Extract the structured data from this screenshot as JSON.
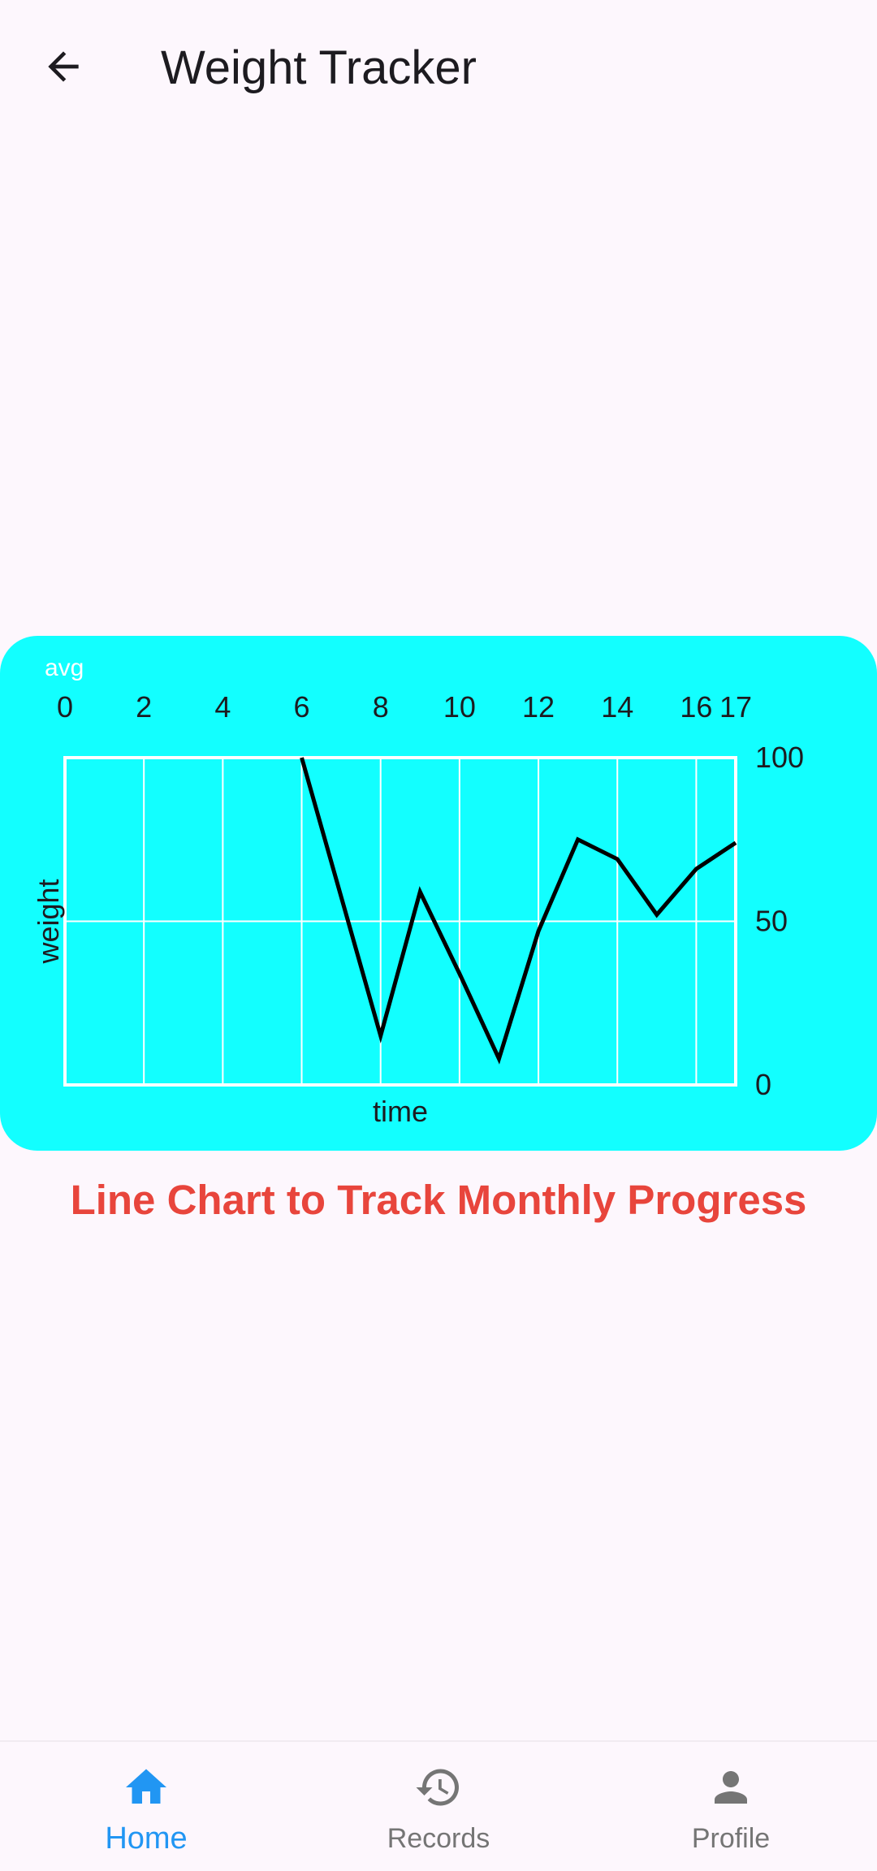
{
  "appbar": {
    "title": "Weight Tracker",
    "back_icon": "arrow-back-icon"
  },
  "chart_data": {
    "type": "line",
    "title": "avg",
    "xlabel": "time",
    "ylabel": "weight",
    "xlim": [
      0,
      17
    ],
    "ylim": [
      0,
      100
    ],
    "x_ticks": [
      0,
      2,
      4,
      6,
      8,
      10,
      12,
      14,
      16,
      17
    ],
    "y_ticks": [
      0,
      50,
      100
    ],
    "x_axis_position": "top",
    "y_axis_position": "right",
    "grid": true,
    "series": [
      {
        "x": [
          6,
          8,
          9,
          10,
          11,
          12,
          13,
          14,
          15,
          16,
          17
        ],
        "y": [
          100,
          15,
          59,
          34,
          8,
          47,
          75,
          69,
          52,
          66,
          74
        ]
      }
    ],
    "colors": {
      "background": "#12ffff",
      "line": "#000000",
      "grid": "#ffffff"
    }
  },
  "caption": "Line Chart to Track Monthly Progress",
  "nav": {
    "items": [
      {
        "label": "Home",
        "icon": "home-icon",
        "active": true
      },
      {
        "label": "Records",
        "icon": "history-icon",
        "active": false
      },
      {
        "label": "Profile",
        "icon": "person-icon",
        "active": false
      }
    ],
    "active_color": "#2196f3",
    "inactive_color": "#757575"
  }
}
